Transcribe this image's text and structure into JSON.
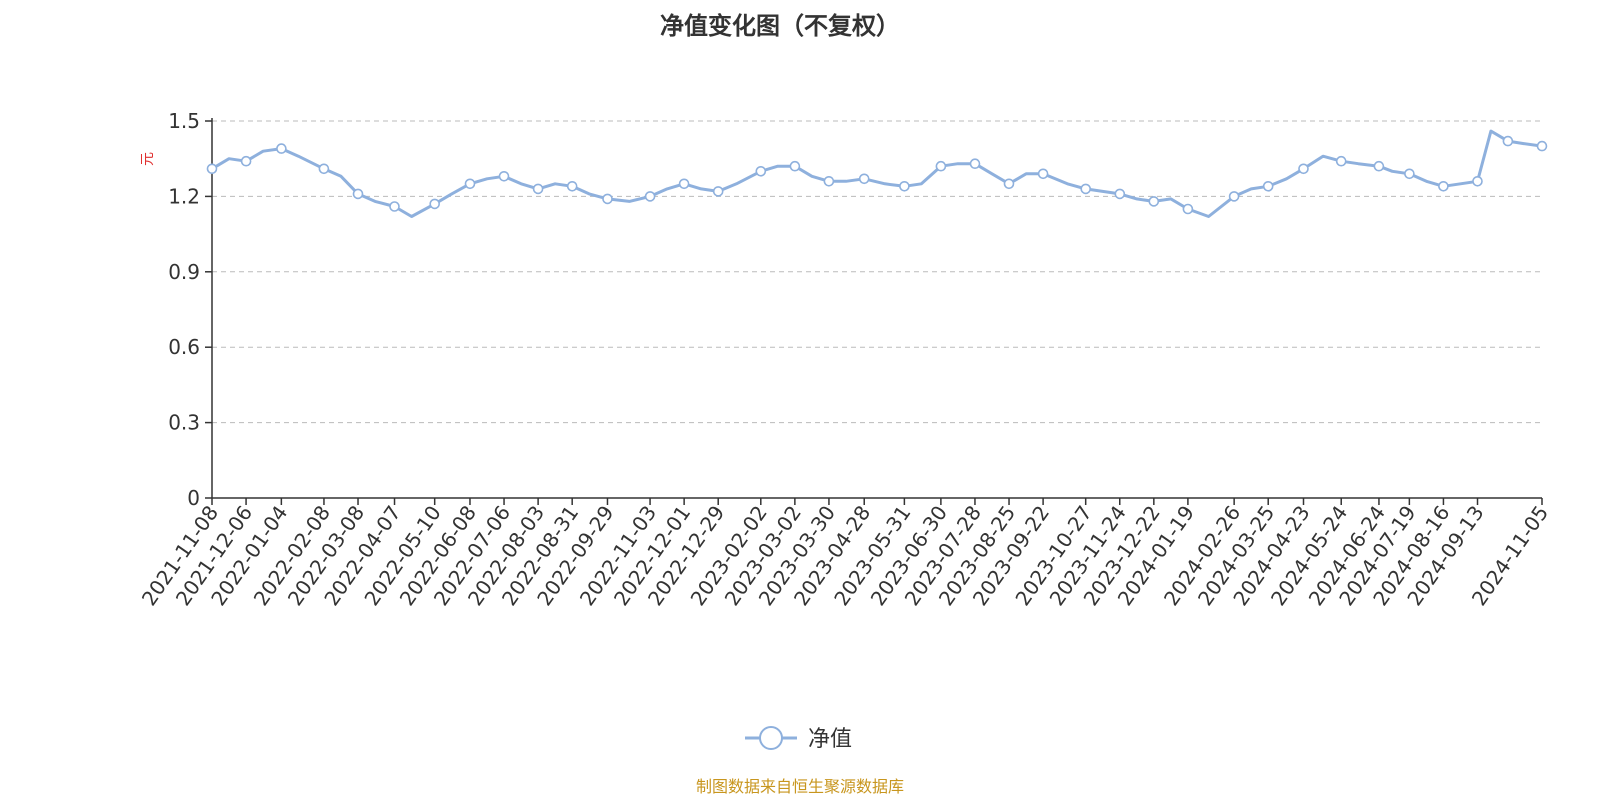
{
  "chart_data": {
    "type": "line",
    "title": "净值变化图（不复权）",
    "ylabel": "元",
    "ylim": [
      0,
      1.5
    ],
    "yticks": [
      "0",
      "0.3",
      "0.6",
      "0.9",
      "1.2",
      "1.5"
    ],
    "grid": true,
    "legend_position": "bottom-center",
    "source": "制图数据来自恒生聚源数据库",
    "colors": {
      "line": "#8eb0dd",
      "unit": "#e03030",
      "source": "#c8961e",
      "grid": "#bbbbbb",
      "axis": "#333333"
    },
    "categories": [
      "2021-11-08",
      "2021-12-06",
      "2022-01-04",
      "2022-02-08",
      "2022-03-08",
      "2022-04-07",
      "2022-05-10",
      "2022-06-08",
      "2022-07-06",
      "2022-08-03",
      "2022-08-31",
      "2022-09-29",
      "2022-11-03",
      "2022-12-01",
      "2022-12-29",
      "2023-02-02",
      "2023-03-02",
      "2023-03-30",
      "2023-04-28",
      "2023-05-31",
      "2023-06-30",
      "2023-07-28",
      "2023-08-25",
      "2023-09-22",
      "2023-10-27",
      "2023-11-24",
      "2023-12-22",
      "2024-01-19",
      "2024-02-26",
      "2024-03-25",
      "2024-04-23",
      "2024-05-24",
      "2024-06-24",
      "2024-07-19",
      "2024-08-16",
      "2024-09-13",
      "2024-11-05"
    ],
    "series": [
      {
        "name": "净值",
        "x": [
          "2021-11-08",
          "2021-11-22",
          "2021-12-06",
          "2021-12-20",
          "2022-01-04",
          "2022-01-18",
          "2022-02-08",
          "2022-02-22",
          "2022-03-08",
          "2022-03-22",
          "2022-04-07",
          "2022-04-21",
          "2022-05-10",
          "2022-05-24",
          "2022-06-08",
          "2022-06-22",
          "2022-07-06",
          "2022-07-20",
          "2022-08-03",
          "2022-08-17",
          "2022-08-31",
          "2022-09-14",
          "2022-09-29",
          "2022-10-17",
          "2022-11-03",
          "2022-11-17",
          "2022-12-01",
          "2022-12-15",
          "2022-12-29",
          "2023-01-13",
          "2023-02-02",
          "2023-02-16",
          "2023-03-02",
          "2023-03-16",
          "2023-03-30",
          "2023-04-13",
          "2023-04-28",
          "2023-05-15",
          "2023-05-31",
          "2023-06-14",
          "2023-06-30",
          "2023-07-14",
          "2023-07-28",
          "2023-08-11",
          "2023-08-25",
          "2023-09-08",
          "2023-09-22",
          "2023-10-12",
          "2023-10-27",
          "2023-11-10",
          "2023-11-24",
          "2023-12-08",
          "2023-12-22",
          "2024-01-05",
          "2024-01-19",
          "2024-02-05",
          "2024-02-26",
          "2024-03-11",
          "2024-03-25",
          "2024-04-09",
          "2024-04-23",
          "2024-05-09",
          "2024-05-24",
          "2024-06-07",
          "2024-06-24",
          "2024-07-05",
          "2024-07-19",
          "2024-08-02",
          "2024-08-16",
          "2024-08-30",
          "2024-09-13",
          "2024-09-24",
          "2024-10-08",
          "2024-10-21",
          "2024-11-05"
        ],
        "values": [
          1.31,
          1.35,
          1.34,
          1.38,
          1.39,
          1.36,
          1.31,
          1.28,
          1.21,
          1.18,
          1.16,
          1.12,
          1.17,
          1.21,
          1.25,
          1.27,
          1.28,
          1.25,
          1.23,
          1.25,
          1.24,
          1.21,
          1.19,
          1.18,
          1.2,
          1.23,
          1.25,
          1.23,
          1.22,
          1.25,
          1.3,
          1.32,
          1.32,
          1.28,
          1.26,
          1.26,
          1.27,
          1.25,
          1.24,
          1.25,
          1.32,
          1.33,
          1.33,
          1.29,
          1.25,
          1.29,
          1.29,
          1.25,
          1.23,
          1.22,
          1.21,
          1.19,
          1.18,
          1.19,
          1.15,
          1.12,
          1.2,
          1.23,
          1.24,
          1.27,
          1.31,
          1.36,
          1.34,
          1.33,
          1.32,
          1.3,
          1.29,
          1.26,
          1.24,
          1.25,
          1.26,
          1.46,
          1.42,
          1.41,
          1.4
        ]
      }
    ]
  }
}
